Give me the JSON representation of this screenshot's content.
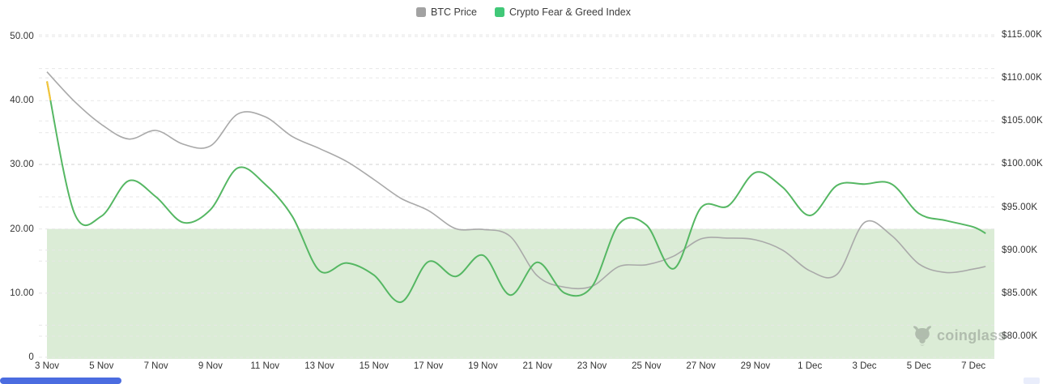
{
  "legend": {
    "items": [
      {
        "label": "BTC Price",
        "color": "#a2a2a2"
      },
      {
        "label": "Crypto Fear & Greed Index",
        "color": "#41c878"
      }
    ]
  },
  "watermark": {
    "text": "coinglass"
  },
  "scrollbar": {
    "thumb_color": "#4b6ce0",
    "right_cap_color": "#e9edfb"
  },
  "chart_data": {
    "type": "line",
    "title": "",
    "legend_position": "top-center",
    "grid": "dashed",
    "dates": [
      "3 Nov",
      "4 Nov",
      "5 Nov",
      "6 Nov",
      "7 Nov",
      "8 Nov",
      "9 Nov",
      "10 Nov",
      "11 Nov",
      "12 Nov",
      "13 Nov",
      "14 Nov",
      "15 Nov",
      "16 Nov",
      "17 Nov",
      "18 Nov",
      "19 Nov",
      "20 Nov",
      "21 Nov",
      "22 Nov",
      "23 Nov",
      "24 Nov",
      "25 Nov",
      "26 Nov",
      "27 Nov",
      "28 Nov",
      "29 Nov",
      "30 Nov",
      "1 Dec",
      "2 Dec",
      "3 Dec",
      "4 Dec",
      "5 Dec",
      "6 Dec",
      "7 Dec"
    ],
    "day_offsets_from_3_nov": [
      0,
      1,
      2,
      3,
      4,
      5,
      6,
      7,
      8,
      9,
      10,
      11,
      12,
      13,
      14,
      15,
      16,
      17,
      18,
      19,
      20,
      21,
      22,
      23,
      24,
      25,
      26,
      27,
      28,
      29,
      30,
      31,
      32,
      33,
      34,
      34.45
    ],
    "x_tick_labels": [
      "3 Nov",
      "5 Nov",
      "7 Nov",
      "9 Nov",
      "11 Nov",
      "13 Nov",
      "15 Nov",
      "17 Nov",
      "19 Nov",
      "21 Nov",
      "23 Nov",
      "25 Nov",
      "27 Nov",
      "29 Nov",
      "1 Dec",
      "3 Dec",
      "5 Dec",
      "7 Dec"
    ],
    "x_tick_day_offsets": [
      0,
      2,
      4,
      6,
      8,
      10,
      12,
      14,
      16,
      18,
      20,
      22,
      24,
      26,
      28,
      30,
      32,
      34
    ],
    "left_axis": {
      "series": "Crypto Fear & Greed Index",
      "min": 0,
      "max": 50,
      "grid_step": 5,
      "tick_labels": [
        "0",
        "10.00",
        "20.00",
        "30.00",
        "40.00",
        "50.00"
      ],
      "tick_values": [
        0,
        10,
        20,
        30,
        40,
        50
      ]
    },
    "right_axis": {
      "series": "BTC Price",
      "min_k": 80,
      "max_k": 115,
      "grid_step_k": 5,
      "tick_labels": [
        "$80.00K",
        "$85.00K",
        "$90.00K",
        "$95.00K",
        "$100.00K",
        "$105.00K",
        "$110.00K",
        "$115.00K"
      ],
      "tick_values_k": [
        80,
        85,
        90,
        95,
        100,
        105,
        110,
        115
      ]
    },
    "band": {
      "axis": "left",
      "from": 0,
      "to": 20,
      "color": "#dbecd6",
      "meaning": "extreme-fear zone 0-20"
    },
    "series": [
      {
        "name": "Crypto Fear & Greed Index",
        "axis": "left",
        "color": "#55b763",
        "tip_color_above_40": "#f4c53d",
        "values": [
          43,
          22.5,
          22,
          27.5,
          25,
          21,
          23,
          29.5,
          27,
          22,
          13.5,
          14.7,
          12.8,
          8.6,
          14.9,
          12.6,
          15.9,
          9.7,
          14.8,
          10,
          11,
          20.8,
          20.6,
          13.8,
          23.3,
          23.6,
          28.8,
          26.5,
          22.1,
          26.8,
          27,
          27,
          22.4,
          21.3,
          20.3,
          19.3
        ]
      },
      {
        "name": "BTC Price",
        "axis": "right",
        "unit": "USD (thousands)",
        "color": "#a9a9a9",
        "values": [
          110.7,
          107.3,
          104.6,
          102.9,
          103.9,
          102.3,
          102.1,
          105.8,
          105.5,
          103.2,
          101.8,
          100.3,
          98.2,
          96.0,
          94.6,
          92.5,
          92.4,
          91.6,
          87.0,
          85.7,
          85.8,
          88.1,
          88.3,
          89.3,
          91.3,
          91.4,
          91.2,
          90.0,
          87.6,
          87.2,
          93.2,
          91.7,
          88.4,
          87.4,
          87.8,
          88.1
        ]
      }
    ]
  }
}
